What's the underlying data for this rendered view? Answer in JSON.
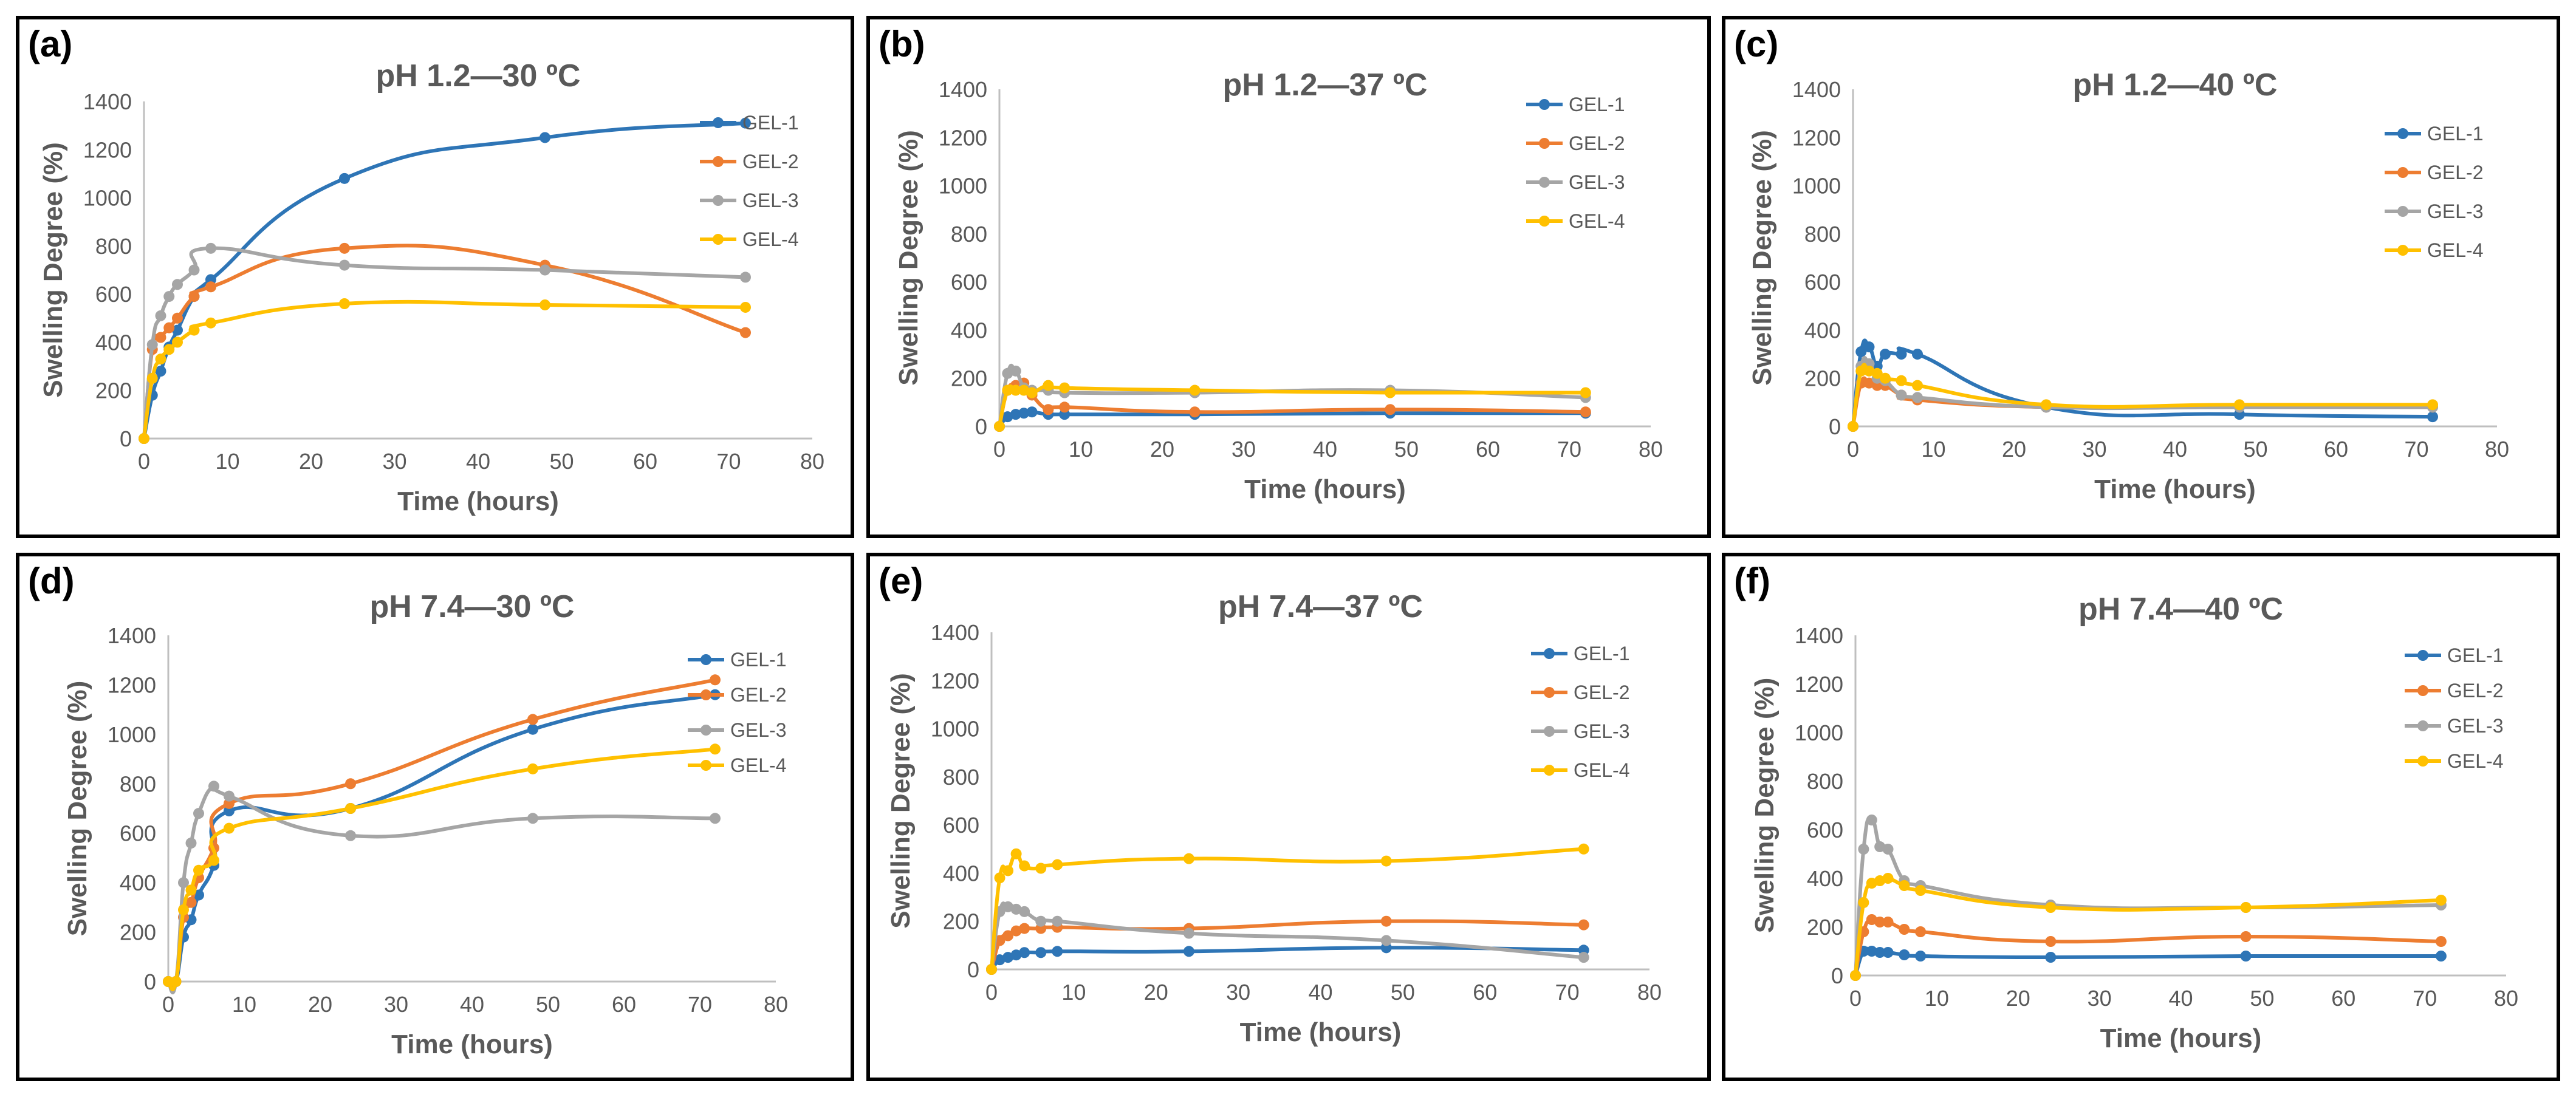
{
  "series_colors": {
    "GEL-1": "#2e75b6",
    "GEL-2": "#ed7d31",
    "GEL-3": "#a5a5a5",
    "GEL-4": "#ffc000"
  },
  "chart_data": [
    {
      "type": "line",
      "letter": "(a)",
      "title": "pH 1.2—30 ºC",
      "xlabel": "Time (hours)",
      "ylabel": "Swelling Degree (%)",
      "xlim": [
        0,
        80
      ],
      "ylim": [
        0,
        1400
      ],
      "xticks": [
        "0",
        "10",
        "20",
        "30",
        "40",
        "50",
        "60",
        "70",
        "80"
      ],
      "yticks": [
        "0",
        "200",
        "400",
        "600",
        "800",
        "1000",
        "1200",
        "1400"
      ],
      "legend": "top-right",
      "grid": false,
      "x": [
        0,
        1,
        2,
        3,
        4,
        6,
        8,
        24,
        48,
        72
      ],
      "series": [
        {
          "name": "GEL-1",
          "values": [
            0,
            180,
            280,
            380,
            450,
            590,
            660,
            1080,
            1250,
            1310
          ]
        },
        {
          "name": "GEL-2",
          "values": [
            0,
            370,
            420,
            460,
            500,
            590,
            630,
            790,
            720,
            440
          ]
        },
        {
          "name": "GEL-3",
          "values": [
            0,
            390,
            510,
            590,
            640,
            700,
            790,
            720,
            700,
            670
          ]
        },
        {
          "name": "GEL-4",
          "values": [
            0,
            250,
            330,
            370,
            400,
            450,
            480,
            560,
            555,
            545
          ]
        }
      ]
    },
    {
      "type": "line",
      "letter": "(b)",
      "title": "pH 1.2—37 ºC",
      "xlabel": "Time (hours)",
      "ylabel": "Swelling Degree (%)",
      "xlim": [
        0,
        80
      ],
      "ylim": [
        0,
        1400
      ],
      "xticks": [
        "0",
        "10",
        "20",
        "30",
        "40",
        "50",
        "60",
        "70",
        "80"
      ],
      "yticks": [
        "0",
        "200",
        "400",
        "600",
        "800",
        "1000",
        "1200",
        "1400"
      ],
      "legend": "top-right",
      "grid": false,
      "x": [
        0,
        1,
        2,
        3,
        4,
        6,
        8,
        24,
        48,
        72
      ],
      "series": [
        {
          "name": "GEL-1",
          "values": [
            0,
            40,
            50,
            55,
            60,
            50,
            50,
            50,
            55,
            55
          ]
        },
        {
          "name": "GEL-2",
          "values": [
            0,
            150,
            170,
            180,
            130,
            70,
            80,
            60,
            70,
            60
          ]
        },
        {
          "name": "GEL-3",
          "values": [
            0,
            220,
            230,
            160,
            150,
            150,
            140,
            140,
            150,
            120
          ]
        },
        {
          "name": "GEL-4",
          "values": [
            0,
            150,
            150,
            150,
            140,
            170,
            160,
            150,
            140,
            140
          ]
        }
      ]
    },
    {
      "type": "line",
      "letter": "(c)",
      "title": "pH 1.2—40 ºC",
      "xlabel": "Time (hours)",
      "ylabel": "Swelling Degree (%)",
      "xlim": [
        0,
        80
      ],
      "ylim": [
        0,
        1400
      ],
      "xticks": [
        "0",
        "10",
        "20",
        "30",
        "40",
        "50",
        "60",
        "70",
        "80"
      ],
      "yticks": [
        "0",
        "200",
        "400",
        "600",
        "800",
        "1000",
        "1200",
        "1400"
      ],
      "legend": "top-right",
      "grid": false,
      "x": [
        0,
        1,
        2,
        3,
        4,
        6,
        8,
        24,
        48,
        72
      ],
      "series": [
        {
          "name": "GEL-1",
          "values": [
            0,
            310,
            330,
            250,
            300,
            300,
            300,
            80,
            50,
            40
          ]
        },
        {
          "name": "GEL-2",
          "values": [
            0,
            180,
            180,
            170,
            170,
            130,
            110,
            80,
            80,
            80
          ]
        },
        {
          "name": "GEL-3",
          "values": [
            0,
            250,
            260,
            200,
            190,
            130,
            120,
            80,
            80,
            80
          ]
        },
        {
          "name": "GEL-4",
          "values": [
            0,
            230,
            230,
            220,
            200,
            190,
            170,
            90,
            90,
            90
          ]
        }
      ]
    },
    {
      "type": "line",
      "letter": "(d)",
      "title": "pH 7.4—30 ºC",
      "xlabel": "Time (hours)",
      "ylabel": "Swelling Degree (%)",
      "xlim": [
        0,
        80
      ],
      "ylim": [
        0,
        1400
      ],
      "xticks": [
        "0",
        "10",
        "20",
        "30",
        "40",
        "50",
        "60",
        "70",
        "80"
      ],
      "yticks": [
        "0",
        "200",
        "400",
        "600",
        "800",
        "1000",
        "1200",
        "1400"
      ],
      "legend": "top-right",
      "grid": false,
      "x": [
        0,
        1,
        2,
        3,
        4,
        6,
        8,
        24,
        48,
        72
      ],
      "series": [
        {
          "name": "GEL-1",
          "values": [
            0,
            0,
            180,
            250,
            350,
            470,
            690,
            700,
            1020,
            1160
          ]
        },
        {
          "name": "GEL-2",
          "values": [
            0,
            0,
            260,
            320,
            420,
            540,
            720,
            800,
            1060,
            1220
          ]
        },
        {
          "name": "GEL-3",
          "values": [
            0,
            0,
            400,
            560,
            680,
            790,
            750,
            590,
            660,
            660
          ]
        },
        {
          "name": "GEL-4",
          "values": [
            0,
            0,
            290,
            370,
            450,
            490,
            620,
            700,
            860,
            940
          ]
        }
      ]
    },
    {
      "type": "line",
      "letter": "(e)",
      "title": "pH 7.4—37 ºC",
      "xlabel": "Time (hours)",
      "ylabel": "Swelling Degree (%)",
      "xlim": [
        0,
        80
      ],
      "ylim": [
        0,
        1400
      ],
      "xticks": [
        "0",
        "10",
        "20",
        "30",
        "40",
        "50",
        "60",
        "70",
        "80"
      ],
      "yticks": [
        "0",
        "200",
        "400",
        "600",
        "800",
        "1000",
        "1200",
        "1400"
      ],
      "legend": "top-right",
      "grid": false,
      "x": [
        0,
        1,
        2,
        3,
        4,
        6,
        8,
        24,
        48,
        72
      ],
      "series": [
        {
          "name": "GEL-1",
          "values": [
            0,
            40,
            50,
            60,
            70,
            70,
            75,
            75,
            90,
            80
          ]
        },
        {
          "name": "GEL-2",
          "values": [
            0,
            120,
            140,
            160,
            170,
            170,
            175,
            170,
            200,
            185
          ]
        },
        {
          "name": "GEL-3",
          "values": [
            0,
            240,
            260,
            250,
            240,
            200,
            200,
            150,
            120,
            50
          ]
        },
        {
          "name": "GEL-4",
          "values": [
            0,
            380,
            410,
            480,
            430,
            420,
            435,
            460,
            450,
            500
          ]
        }
      ]
    },
    {
      "type": "line",
      "letter": "(f)",
      "title": "pH 7.4—40 ºC",
      "xlabel": "Time (hours)",
      "ylabel": "Swelling Degree (%)",
      "xlim": [
        0,
        80
      ],
      "ylim": [
        0,
        1400
      ],
      "xticks": [
        "0",
        "10",
        "20",
        "30",
        "40",
        "50",
        "60",
        "70",
        "80"
      ],
      "yticks": [
        "0",
        "200",
        "400",
        "600",
        "800",
        "1000",
        "1200",
        "1400"
      ],
      "legend": "top-right",
      "grid": false,
      "x": [
        0,
        1,
        2,
        3,
        4,
        6,
        8,
        24,
        48,
        72
      ],
      "series": [
        {
          "name": "GEL-1",
          "values": [
            0,
            100,
            100,
            95,
            95,
            85,
            80,
            75,
            80,
            80
          ]
        },
        {
          "name": "GEL-2",
          "values": [
            0,
            180,
            230,
            220,
            220,
            190,
            180,
            140,
            160,
            140
          ]
        },
        {
          "name": "GEL-3",
          "values": [
            0,
            520,
            640,
            530,
            520,
            390,
            370,
            290,
            280,
            290
          ]
        },
        {
          "name": "GEL-4",
          "values": [
            0,
            300,
            380,
            390,
            400,
            370,
            350,
            280,
            280,
            310
          ]
        }
      ]
    }
  ]
}
